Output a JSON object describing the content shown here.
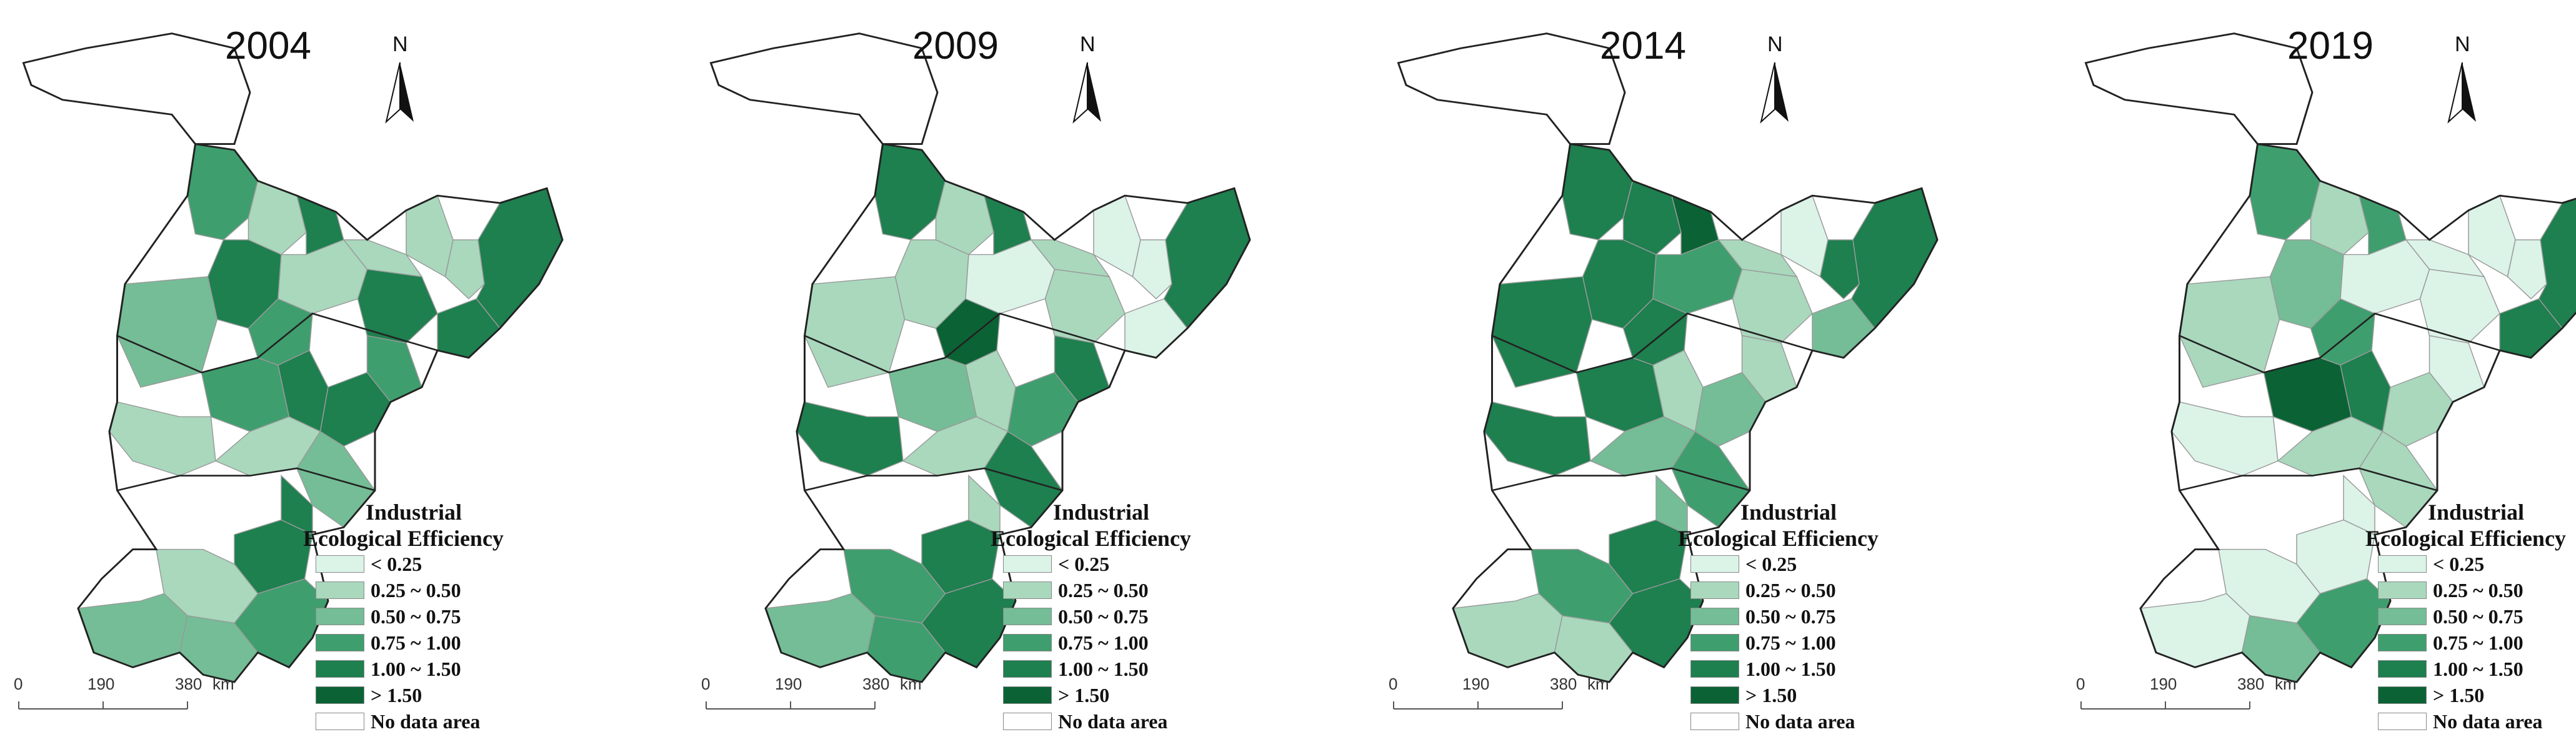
{
  "colors": {
    "c0": "#dcf3e8",
    "c1": "#a9d8bd",
    "c2": "#74bd96",
    "c3": "#3f9e6e",
    "c4": "#1e7f4f",
    "c5": "#0b6335",
    "nodata": "#ffffff",
    "border": "#222222",
    "inner": "#9a9a9a"
  },
  "legend": {
    "title_line1": "Industrial",
    "title_line2": "Ecological Efficiency",
    "items": [
      {
        "label": "< 0.25",
        "color": "#dcf3e8"
      },
      {
        "label": "0.25 ~ 0.50",
        "color": "#a9d8bd"
      },
      {
        "label": "0.50 ~ 0.75",
        "color": "#74bd96"
      },
      {
        "label": "0.75 ~ 1.00",
        "color": "#3f9e6e"
      },
      {
        "label": "1.00 ~ 1.50",
        "color": "#1e7f4f"
      },
      {
        "label": "> 1.50",
        "color": "#0b6335"
      },
      {
        "label": "No data area",
        "color": "#ffffff"
      }
    ]
  },
  "scalebar": {
    "ticks": [
      "0",
      "190",
      "380"
    ],
    "unit": "km"
  },
  "north": "N",
  "maps": [
    {
      "year": "2004",
      "regions": [
        3,
        1,
        4,
        4,
        3,
        2,
        1,
        1,
        4,
        4,
        1,
        1,
        4,
        3,
        4,
        4,
        3,
        1,
        1,
        2,
        4,
        4,
        1,
        2,
        2
      ]
    },
    {
      "year": "2009",
      "regions": [
        4,
        1,
        4,
        1,
        5,
        1,
        0,
        1,
        1,
        0,
        0,
        0,
        4,
        2,
        1,
        3,
        4,
        4,
        1,
        4,
        4,
        1,
        3,
        2,
        3
      ]
    },
    {
      "year": "2014",
      "regions": [
        4,
        4,
        5,
        4,
        4,
        4,
        3,
        1,
        1,
        2,
        0,
        4,
        4,
        4,
        1,
        2,
        1,
        4,
        2,
        3,
        4,
        2,
        3,
        1,
        1
      ]
    },
    {
      "year": "2019",
      "regions": [
        3,
        1,
        3,
        2,
        3,
        1,
        0,
        0,
        0,
        4,
        0,
        0,
        4,
        5,
        4,
        1,
        0,
        0,
        1,
        1,
        0,
        0,
        0,
        0,
        2
      ]
    }
  ]
}
